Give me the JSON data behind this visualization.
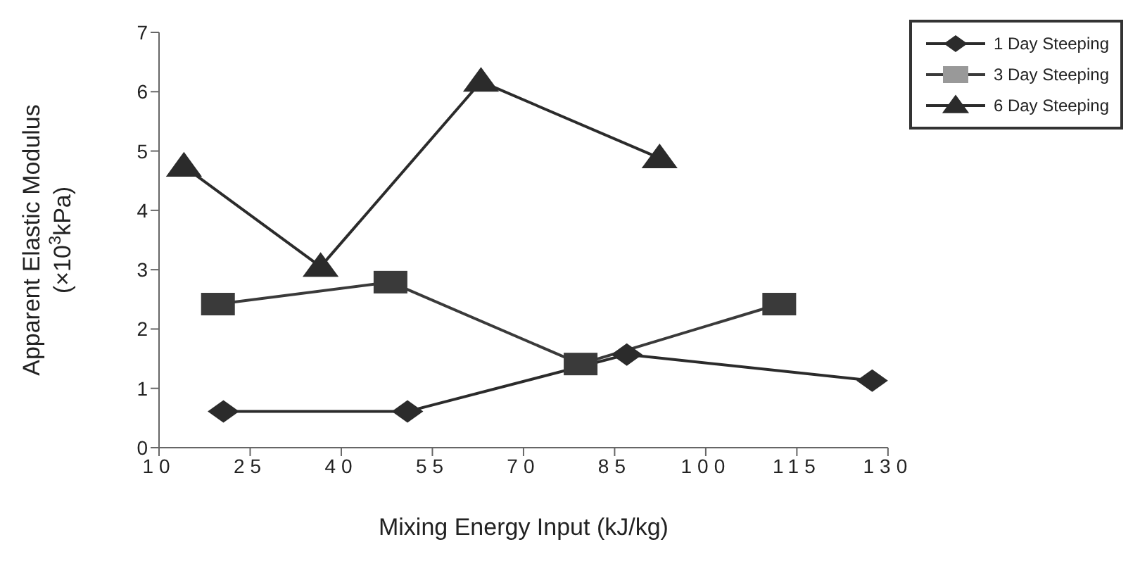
{
  "chart_data": {
    "type": "line",
    "xlabel": "Mixing Energy Input (kJ/kg)",
    "ylabel": "Apparent Elastic Modulus (×10$^{3}$kPa)",
    "xlim": [
      10,
      130
    ],
    "xticks": [
      10,
      25,
      40,
      55,
      70,
      85,
      100,
      115,
      130
    ],
    "ylim": [
      0,
      7
    ],
    "yticks": [
      0,
      1,
      2,
      3,
      4,
      5,
      6,
      7
    ],
    "grid": false,
    "legend": "top right",
    "line_style": "solid",
    "series": [
      {
        "name": "1 Day Steeping",
        "color": "#2b2b2b",
        "marker": "diamond",
        "x": [
          20.6,
          50.9,
          87,
          127.4
        ],
        "values": [
          0.61,
          0.61,
          1.57,
          1.13
        ]
      },
      {
        "name": "3 Day Steeping",
        "color": "#3a3a3a",
        "marker": "square",
        "x": [
          19.7,
          48.1,
          79.4,
          112.1
        ],
        "values": [
          2.42,
          2.79,
          1.41,
          2.42
        ]
      },
      {
        "name": "6 Day Steeping",
        "color": "#2b2b2b",
        "marker": "triangle",
        "x": [
          14.1,
          36.6,
          63.0,
          92.4
        ],
        "values": [
          4.74,
          3.05,
          6.17,
          4.88
        ]
      }
    ]
  }
}
